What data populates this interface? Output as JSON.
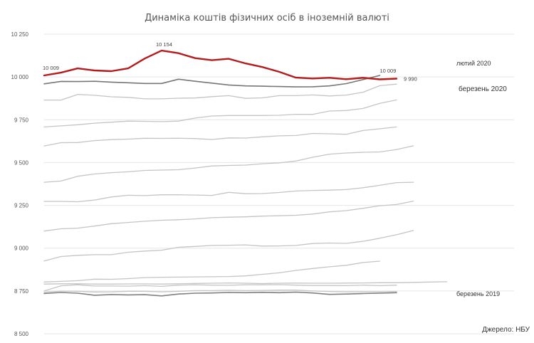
{
  "chart_data": {
    "type": "line",
    "title": "Динаміка коштів фізичних осіб в іноземній валюті",
    "source": "Джерело: НБУ",
    "xlabel": "",
    "ylabel": "",
    "ylim": [
      8500,
      10250
    ],
    "yticks": [
      8500,
      8750,
      9000,
      9250,
      9500,
      9750,
      10000,
      10250
    ],
    "ytick_labels": [
      "8 500",
      "8 750",
      "9 000",
      "9 250",
      "9 500",
      "9 750",
      "10 000",
      "10 250"
    ],
    "grid": true,
    "legend": "none",
    "colors": {
      "highlight": "#b41c1c",
      "dark": "#777777",
      "light": "#c4c4c4",
      "grid": "#e6e6e6"
    },
    "x_count": 29,
    "series": [
      {
        "name": "березень 2019",
        "color": "#808080",
        "width": 1.6,
        "values": [
          8735,
          8741,
          8737,
          8725,
          8729,
          8727,
          8728,
          8721,
          8732,
          8737,
          8738,
          8741,
          8740,
          8742,
          8740,
          8743,
          8738,
          8730,
          8732,
          8735,
          8737,
          8740
        ]
      },
      {
        "color": "#c4c4c4",
        "width": 1.3,
        "values": [
          8742,
          8749,
          8748,
          8744,
          8745,
          8748,
          8748,
          8745,
          8748,
          8752,
          8752,
          8754,
          8752,
          8753,
          8755,
          8755,
          8750,
          8747,
          8745,
          8745,
          8745,
          8747
        ]
      },
      {
        "color": "#c4c4c4",
        "width": 1.3,
        "values": [
          8750,
          8780,
          8786,
          8779,
          8779,
          8778,
          8781,
          8777,
          8784,
          8786,
          8784,
          8783,
          8786,
          8786,
          8787,
          8784,
          8782,
          8782,
          8781,
          8784,
          8781,
          8784
        ]
      },
      {
        "color": "#c4c4c4",
        "width": 1.3,
        "values": [
          8790,
          8792,
          8792,
          8790,
          8790,
          8791,
          8791,
          8790,
          8792,
          8794,
          8795,
          8797,
          8795,
          8793,
          8795,
          8796,
          8795,
          8795,
          8796,
          8797,
          8798,
          8798,
          8800,
          8802,
          8804
        ]
      },
      {
        "color": "#c4c4c4",
        "width": 1.3,
        "values": [
          8802,
          8806,
          8810,
          8819,
          8818,
          8822,
          8828,
          8830,
          8831,
          8832,
          8833,
          8834,
          8838,
          8847,
          8856,
          8870,
          8881,
          8891,
          8900,
          8916,
          8924
        ]
      },
      {
        "color": "#c4c4c4",
        "width": 1.3,
        "values": [
          8925,
          8951,
          8958,
          8962,
          8962,
          8976,
          8983,
          8988,
          9005,
          9010,
          9016,
          9017,
          9019,
          9012,
          9013,
          9016,
          9027,
          9030,
          9028,
          9040,
          9058,
          9078,
          9103
        ]
      },
      {
        "color": "#c4c4c4",
        "width": 1.3,
        "values": [
          9100,
          9113,
          9117,
          9129,
          9143,
          9150,
          9157,
          9163,
          9166,
          9171,
          9178,
          9181,
          9183,
          9187,
          9189,
          9192,
          9199,
          9212,
          9219,
          9233,
          9248,
          9255,
          9275
        ]
      },
      {
        "color": "#c4c4c4",
        "width": 1.3,
        "values": [
          9273,
          9273,
          9271,
          9281,
          9299,
          9309,
          9307,
          9312,
          9312,
          9310,
          9308,
          9326,
          9318,
          9319,
          9325,
          9334,
          9337,
          9339,
          9342,
          9353,
          9367,
          9383,
          9385
        ]
      },
      {
        "color": "#c4c4c4",
        "width": 1.3,
        "values": [
          9385,
          9392,
          9420,
          9433,
          9441,
          9446,
          9454,
          9456,
          9458,
          9468,
          9480,
          9483,
          9485,
          9493,
          9498,
          9509,
          9531,
          9549,
          9556,
          9560,
          9562,
          9576,
          9598
        ]
      },
      {
        "color": "#c4c4c4",
        "width": 1.3,
        "values": [
          9597,
          9616,
          9617,
          9628,
          9634,
          9637,
          9642,
          9641,
          9642,
          9640,
          9635,
          9644,
          9643,
          9650,
          9656,
          9658,
          9670,
          9668,
          9665,
          9687,
          9697,
          9708
        ]
      },
      {
        "color": "#c4c4c4",
        "width": 1.3,
        "values": [
          9708,
          9714,
          9721,
          9730,
          9736,
          9742,
          9741,
          9739,
          9742,
          9760,
          9772,
          9775,
          9775,
          9775,
          9776,
          9782,
          9781,
          9801,
          9804,
          9816,
          9846,
          9866
        ]
      },
      {
        "name": "березень 2020",
        "color": "#c4c4c4",
        "width": 1.3,
        "values": [
          9865,
          9865,
          9898,
          9893,
          9884,
          9881,
          9872,
          9872,
          9876,
          9877,
          9885,
          9891,
          9875,
          9878,
          9891,
          9891,
          9895,
          9889,
          9894,
          9911,
          9949,
          9958
        ]
      },
      {
        "name": "лютий 2020",
        "color": "#777777",
        "width": 1.6,
        "values": [
          9960,
          9974,
          9973,
          9975,
          9970,
          9966,
          9962,
          9962,
          9987,
          9975,
          9964,
          9953,
          9948,
          9946,
          9944,
          9942,
          9943,
          9948,
          9961,
          9985,
          10009
        ]
      },
      {
        "color": "#b41c1c",
        "width": 2.4,
        "values": [
          10009,
          10025,
          10050,
          10038,
          10034,
          10050,
          10108,
          10154,
          10139,
          10110,
          10098,
          10106,
          10079,
          10058,
          10030,
          9996,
          9991,
          9995,
          9987,
          9995,
          9986,
          9990
        ]
      }
    ],
    "annotations": [
      {
        "text": "10 009",
        "series": 13,
        "index": 0
      },
      {
        "text": "10 154",
        "series": 13,
        "index": 7
      },
      {
        "text": "10 009",
        "series": 12,
        "index": 20
      },
      {
        "text": "9 990",
        "series": 13,
        "index": 21
      }
    ],
    "series_labels": [
      "лютий 2020",
      "березень 2020",
      "березень 2019"
    ]
  }
}
